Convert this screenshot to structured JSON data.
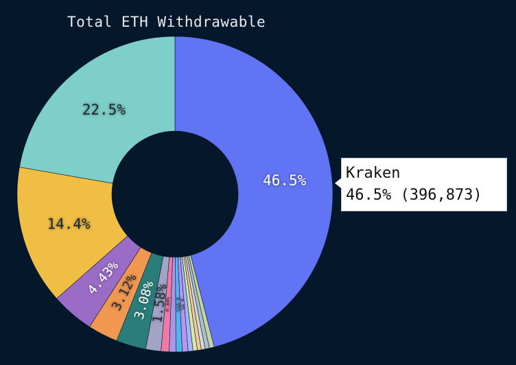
{
  "chart_data": {
    "type": "pie",
    "donut": true,
    "title": "Total ETH Withdrawable",
    "slices": [
      {
        "name": "Kraken",
        "value": 46.5,
        "label": "46.5%",
        "color": "#6174f4"
      },
      {
        "value": 0.5,
        "color": "#c8d2a8"
      },
      {
        "value": 0.45,
        "color": "#a8c2c8"
      },
      {
        "value": 0.4,
        "color": "#d8d8d0"
      },
      {
        "value": 0.4,
        "color": "#f0c9a0"
      },
      {
        "value": 0.45,
        "color": "#d7e6a5"
      },
      {
        "value": 0.5,
        "color": "#a5b4ff"
      },
      {
        "value": 0.6,
        "color": "#b497f0",
        "label": "0.6%"
      },
      {
        "value": 0.65,
        "color": "#56b3f0",
        "label": "0.65%"
      },
      {
        "value": 0.69,
        "color": "#a997e8"
      },
      {
        "value": 0.84,
        "color": "#f07aa6",
        "label": "0.84%"
      },
      {
        "value": 1.58,
        "color": "#a2a4c6",
        "label": "1.58%"
      },
      {
        "value": 3.08,
        "color": "#2a7d7a",
        "label": "3.08%"
      },
      {
        "value": 3.12,
        "color": "#f09851",
        "label": "3.12%"
      },
      {
        "value": 4.43,
        "color": "#9a6cc6",
        "label": "4.43%"
      },
      {
        "value": 14.4,
        "color": "#f0be45",
        "label": "14.4%"
      },
      {
        "value": 22.5,
        "color": "#7ecfc9",
        "label": "22.5%"
      }
    ]
  },
  "tooltip": {
    "name": "Kraken",
    "detail": "46.5% (396,873)"
  }
}
